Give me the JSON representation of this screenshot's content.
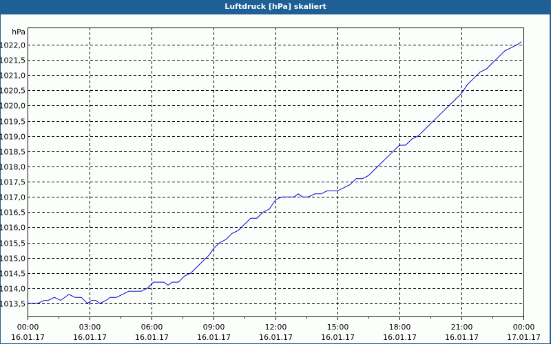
{
  "window": {
    "title": "Luftdruck [hPa] skaliert"
  },
  "colors": {
    "titlebar": "#1e5f96",
    "background": "#fcfefc",
    "line": "#0000c8",
    "grid": "#000000"
  },
  "chart_data": {
    "type": "line",
    "title": "Luftdruck [hPa] skaliert",
    "xlabel": "",
    "ylabel": "hPa",
    "ylim": [
      1013.07,
      1022.55
    ],
    "xlim_hours": [
      0,
      24
    ],
    "grid": true,
    "legend": null,
    "y_ticks": [
      "1013,5",
      "1014,0",
      "1014,5",
      "1015,0",
      "1015,5",
      "1016,0",
      "1016,5",
      "1017,0",
      "1017,5",
      "1018,0",
      "1018,5",
      "1019,0",
      "1019,5",
      "1020,0",
      "1020,5",
      "1021,0",
      "1021,5",
      "1022,0"
    ],
    "x_ticks": [
      {
        "time": "00:00",
        "date": "16.01.17"
      },
      {
        "time": "03:00",
        "date": "16.01.17"
      },
      {
        "time": "06:00",
        "date": "16.01.17"
      },
      {
        "time": "09:00",
        "date": "16.01.17"
      },
      {
        "time": "12:00",
        "date": "16.01.17"
      },
      {
        "time": "15:00",
        "date": "16.01.17"
      },
      {
        "time": "18:00",
        "date": "16.01.17"
      },
      {
        "time": "21:00",
        "date": "16.01.17"
      },
      {
        "time": "00:00",
        "date": "17.01.17"
      }
    ],
    "series": [
      {
        "name": "Luftdruck",
        "x_hours": [
          0,
          0.5,
          0.8,
          1.0,
          1.3,
          1.6,
          2.0,
          2.3,
          2.6,
          2.9,
          3.1,
          3.3,
          3.5,
          3.8,
          4.0,
          4.3,
          4.6,
          4.9,
          5.2,
          5.5,
          5.8,
          6.1,
          6.4,
          6.6,
          6.8,
          7.0,
          7.3,
          7.6,
          7.9,
          8.2,
          8.5,
          8.8,
          9.0,
          9.3,
          9.6,
          9.9,
          10.2,
          10.5,
          10.8,
          11.1,
          11.4,
          11.7,
          12.0,
          12.3,
          12.6,
          12.9,
          13.1,
          13.3,
          13.6,
          13.9,
          14.2,
          14.5,
          14.8,
          15.0,
          15.3,
          15.6,
          15.9,
          16.2,
          16.5,
          16.8,
          17.1,
          17.4,
          17.7,
          18.0,
          18.3,
          18.6,
          18.9,
          19.2,
          19.5,
          19.8,
          20.1,
          20.4,
          20.7,
          21.0,
          21.3,
          21.6,
          21.9,
          22.2,
          22.5,
          22.8,
          23.1,
          23.4,
          23.7,
          23.9
        ],
        "values": [
          1013.5,
          1013.5,
          1013.6,
          1013.6,
          1013.7,
          1013.6,
          1013.8,
          1013.7,
          1013.7,
          1013.5,
          1013.6,
          1013.6,
          1013.5,
          1013.6,
          1013.7,
          1013.7,
          1013.8,
          1013.9,
          1013.9,
          1013.9,
          1014.0,
          1014.2,
          1014.2,
          1014.2,
          1014.1,
          1014.2,
          1014.2,
          1014.4,
          1014.5,
          1014.7,
          1014.9,
          1015.1,
          1015.3,
          1015.5,
          1015.6,
          1015.8,
          1015.9,
          1016.1,
          1016.3,
          1016.3,
          1016.5,
          1016.6,
          1016.9,
          1017.0,
          1017.0,
          1017.0,
          1017.1,
          1017.0,
          1017.0,
          1017.1,
          1017.1,
          1017.2,
          1017.2,
          1017.2,
          1017.3,
          1017.4,
          1017.6,
          1017.6,
          1017.7,
          1017.9,
          1018.1,
          1018.3,
          1018.5,
          1018.7,
          1018.7,
          1018.9,
          1019.0,
          1019.2,
          1019.4,
          1019.6,
          1019.8,
          1020.0,
          1020.2,
          1020.4,
          1020.7,
          1020.9,
          1021.1,
          1021.2,
          1021.4,
          1021.6,
          1021.8,
          1021.9,
          1022.0,
          1022.1
        ]
      }
    ]
  }
}
